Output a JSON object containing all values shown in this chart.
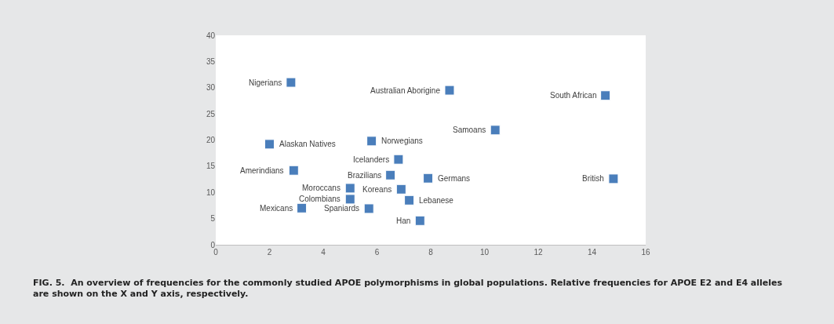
{
  "chart_data": {
    "type": "scatter",
    "marker": "square",
    "xlim": [
      0,
      16
    ],
    "xticks": [
      0,
      2,
      4,
      6,
      8,
      10,
      12,
      14,
      16
    ],
    "ylim": [
      0,
      40
    ],
    "yticks": [
      0,
      5,
      10,
      15,
      20,
      25,
      30,
      35,
      40
    ],
    "x": [
      2.8,
      8.7,
      14.5,
      10.4,
      2.0,
      5.8,
      6.8,
      2.9,
      6.5,
      7.9,
      14.8,
      5.0,
      6.9,
      5.0,
      7.2,
      3.2,
      5.7,
      7.6
    ],
    "series": [
      {
        "color": "#4a7ebb",
        "values": [
          31.0,
          29.5,
          28.5,
          21.9,
          19.2,
          19.8,
          16.3,
          14.2,
          13.3,
          12.7,
          12.6,
          10.8,
          10.6,
          8.7,
          8.5,
          7.0,
          6.9,
          4.6
        ]
      }
    ],
    "annotations": [
      {
        "text": "Nigerians",
        "x": 2.8,
        "y": 31.0
      },
      {
        "text": "Australian Aborigine",
        "x": 8.7,
        "y": 29.5
      },
      {
        "text": "South African",
        "x": 14.5,
        "y": 28.5
      },
      {
        "text": "Samoans",
        "x": 10.4,
        "y": 21.9
      },
      {
        "text": "Alaskan Natives",
        "x": 2.0,
        "y": 19.2
      },
      {
        "text": "Norwegians",
        "x": 5.8,
        "y": 19.8
      },
      {
        "text": "Icelanders",
        "x": 6.8,
        "y": 16.3
      },
      {
        "text": "Amerindians",
        "x": 2.9,
        "y": 14.2
      },
      {
        "text": "Brazilians",
        "x": 6.5,
        "y": 13.3
      },
      {
        "text": "Germans",
        "x": 7.9,
        "y": 12.7
      },
      {
        "text": "British",
        "x": 14.8,
        "y": 12.6
      },
      {
        "text": "Moroccans",
        "x": 5.0,
        "y": 10.8
      },
      {
        "text": "Koreans",
        "x": 6.9,
        "y": 10.6
      },
      {
        "text": "Colombians",
        "x": 5.0,
        "y": 8.7
      },
      {
        "text": "Lebanese",
        "x": 7.2,
        "y": 8.5
      },
      {
        "text": "Mexicans",
        "x": 3.2,
        "y": 7.0
      },
      {
        "text": "Spaniards",
        "x": 5.7,
        "y": 6.9
      },
      {
        "text": "Han",
        "x": 7.6,
        "y": 4.6
      },
      "FIG. 5.  An overview of frequencies for the commonly studied APOE polymorphisms in global populations. Relative frequencies for APOE E2 and E4 alleles are shown on the X and Y axis, respectively."
    ]
  }
}
